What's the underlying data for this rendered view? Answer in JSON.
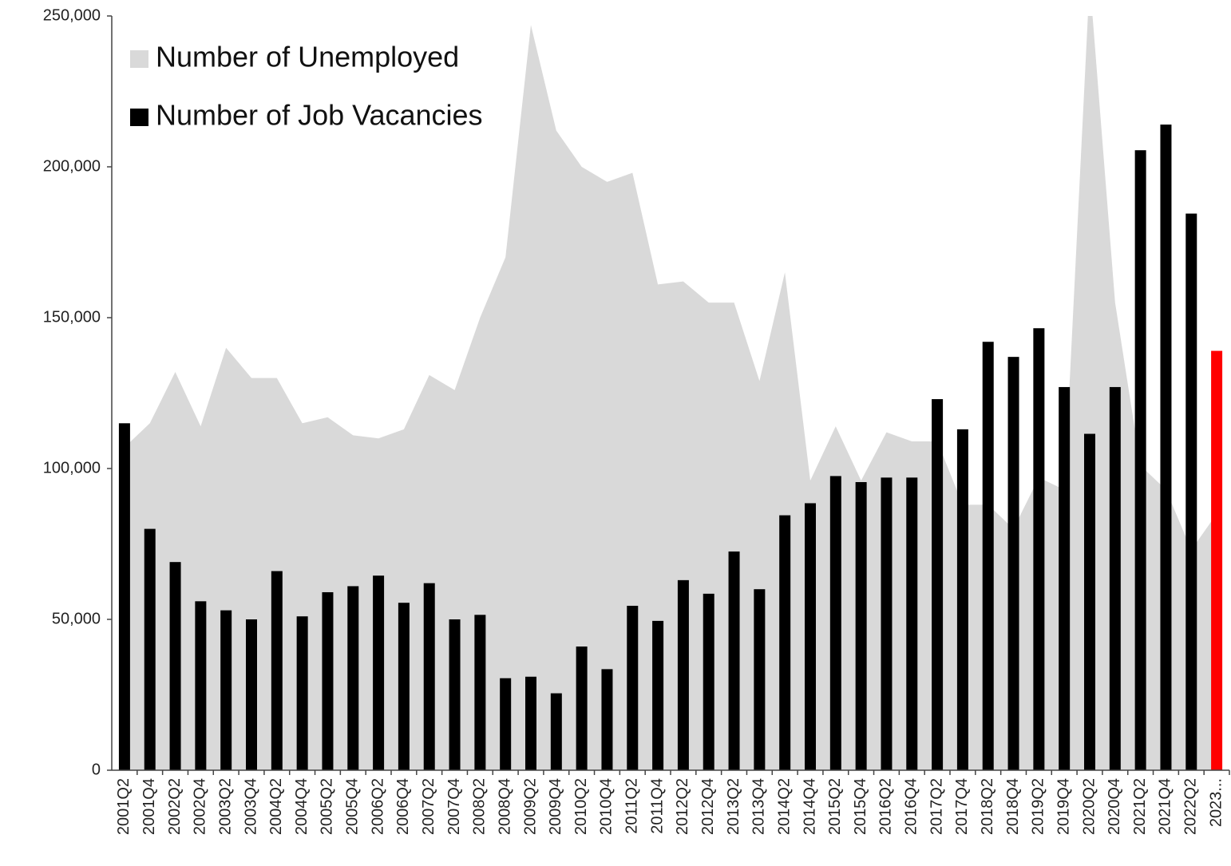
{
  "chart_data": {
    "type": "bar",
    "categories": [
      "2001Q2",
      "2001Q4",
      "2002Q2",
      "2002Q4",
      "2003Q2",
      "2003Q4",
      "2004Q2",
      "2004Q4",
      "2005Q2",
      "2005Q4",
      "2006Q2",
      "2006Q4",
      "2007Q2",
      "2007Q4",
      "2008Q2",
      "2008Q4",
      "2009Q2",
      "2009Q4",
      "2010Q2",
      "2010Q4",
      "2011Q2",
      "2011Q4",
      "2012Q2",
      "2012Q4",
      "2013Q2",
      "2013Q4",
      "2014Q2",
      "2014Q4",
      "2015Q2",
      "2015Q4",
      "2016Q2",
      "2016Q4",
      "2017Q2",
      "2017Q4",
      "2018Q2",
      "2018Q4",
      "2019Q2",
      "2019Q4",
      "2020Q2",
      "2020Q4",
      "2021Q2",
      "2021Q4",
      "2022Q2",
      "2023..."
    ],
    "series": [
      {
        "name": "Number of Unemployed",
        "type": "area",
        "color": "#d9d9d9",
        "values": [
          107000,
          115000,
          132000,
          114000,
          140000,
          130000,
          130000,
          115000,
          117000,
          111000,
          110000,
          113000,
          131000,
          126000,
          150000,
          170000,
          247000,
          212000,
          200000,
          195000,
          198000,
          161000,
          162000,
          155000,
          155000,
          129000,
          165000,
          96000,
          114000,
          96000,
          112000,
          109000,
          109000,
          88000,
          88000,
          80000,
          97000,
          93000,
          262000,
          155000,
          101000,
          93000,
          73000,
          85000
        ]
      },
      {
        "name": "Number of Job Vacancies",
        "type": "bar",
        "color": "#000000",
        "colors": [
          "#000000",
          "#000000",
          "#000000",
          "#000000",
          "#000000",
          "#000000",
          "#000000",
          "#000000",
          "#000000",
          "#000000",
          "#000000",
          "#000000",
          "#000000",
          "#000000",
          "#000000",
          "#000000",
          "#000000",
          "#000000",
          "#000000",
          "#000000",
          "#000000",
          "#000000",
          "#000000",
          "#000000",
          "#000000",
          "#000000",
          "#000000",
          "#000000",
          "#000000",
          "#000000",
          "#000000",
          "#000000",
          "#000000",
          "#000000",
          "#000000",
          "#000000",
          "#000000",
          "#000000",
          "#000000",
          "#000000",
          "#000000",
          "#000000",
          "#000000",
          "#ff0000"
        ],
        "values": [
          115000,
          80000,
          69000,
          56000,
          53000,
          50000,
          66000,
          51000,
          59000,
          61000,
          64500,
          55500,
          62000,
          50000,
          51500,
          30500,
          31000,
          25500,
          41000,
          33500,
          54500,
          49500,
          63000,
          58500,
          72500,
          60000,
          84500,
          88500,
          97500,
          95500,
          97000,
          97000,
          123000,
          113000,
          142000,
          137000,
          146500,
          127000,
          111500,
          127000,
          205500,
          214000,
          184500,
          139000
        ]
      }
    ],
    "ylim": [
      0,
      250000
    ],
    "yticks": [
      0,
      {
        "value": 50000,
        "label": "50,000"
      },
      {
        "value": 100000,
        "label": "100,000"
      },
      {
        "value": 150000,
        "label": "150,000"
      },
      {
        "value": 200000,
        "label": "200,000"
      },
      {
        "value": 250000,
        "label": "250,000"
      }
    ],
    "legend": "upper-left",
    "grid": false
  }
}
